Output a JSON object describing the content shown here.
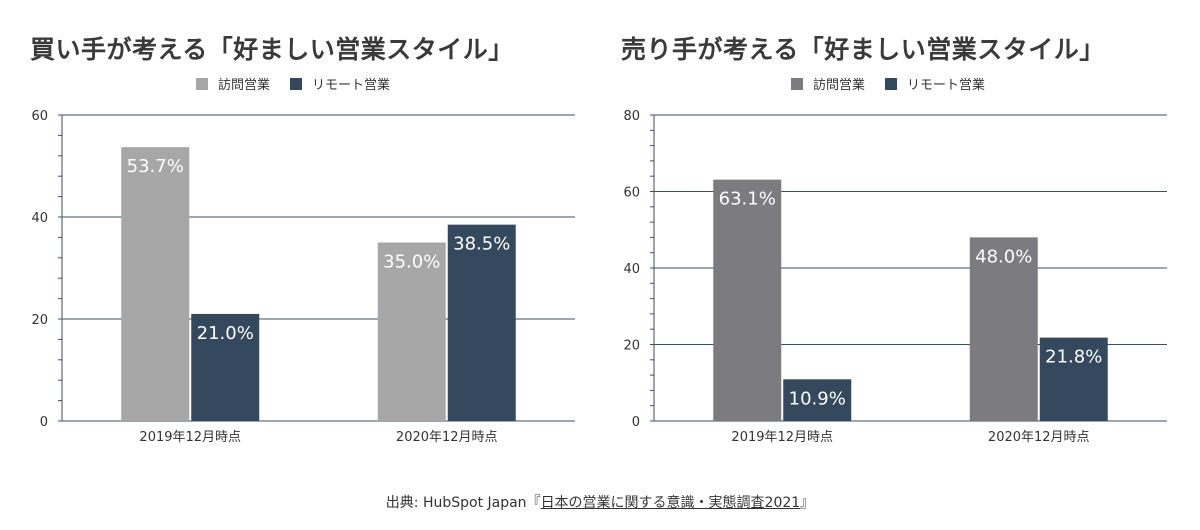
{
  "colors": {
    "visit": "#a7a7a8",
    "visit_right": "#7c7c80",
    "remote": "#34495d",
    "grid": "#3b4f63",
    "text": "#333333",
    "bar_label": "#ffffff"
  },
  "chart_data": [
    {
      "type": "bar",
      "title": "買い手が考える「好ましい営業スタイル」",
      "categories": [
        "2019年12月時点",
        "2020年12月時点"
      ],
      "series": [
        {
          "name": "訪問営業",
          "values": [
            53.7,
            35.0
          ],
          "labels": [
            "53.7%",
            "35.0%"
          ]
        },
        {
          "name": "リモート営業",
          "values": [
            21.0,
            38.5
          ],
          "labels": [
            "21.0%",
            "38.5%"
          ]
        }
      ],
      "ylim": [
        0,
        60
      ],
      "yticks": [
        0,
        20,
        40,
        60
      ],
      "ytick_labels": [
        "0",
        "20",
        "40",
        "60"
      ],
      "grid": true,
      "legend_position": "top"
    },
    {
      "type": "bar",
      "title": "売り手が考える「好ましい営業スタイル」",
      "categories": [
        "2019年12月時点",
        "2020年12月時点"
      ],
      "series": [
        {
          "name": "訪問営業",
          "values": [
            63.1,
            48.0
          ],
          "labels": [
            "63.1%",
            "48.0%"
          ]
        },
        {
          "name": "リモート営業",
          "values": [
            10.9,
            21.8
          ],
          "labels": [
            "10.9%",
            "21.8%"
          ]
        }
      ],
      "ylim": [
        0,
        80
      ],
      "yticks": [
        0,
        20,
        40,
        60,
        80
      ],
      "ytick_labels": [
        "0",
        "20",
        "40",
        "60",
        "80"
      ],
      "grid": true,
      "legend_position": "top"
    }
  ],
  "source": {
    "prefix": "出典: HubSpot Japan『",
    "link_text": "日本の営業に関する意識・実態調査2021",
    "suffix": "』"
  }
}
